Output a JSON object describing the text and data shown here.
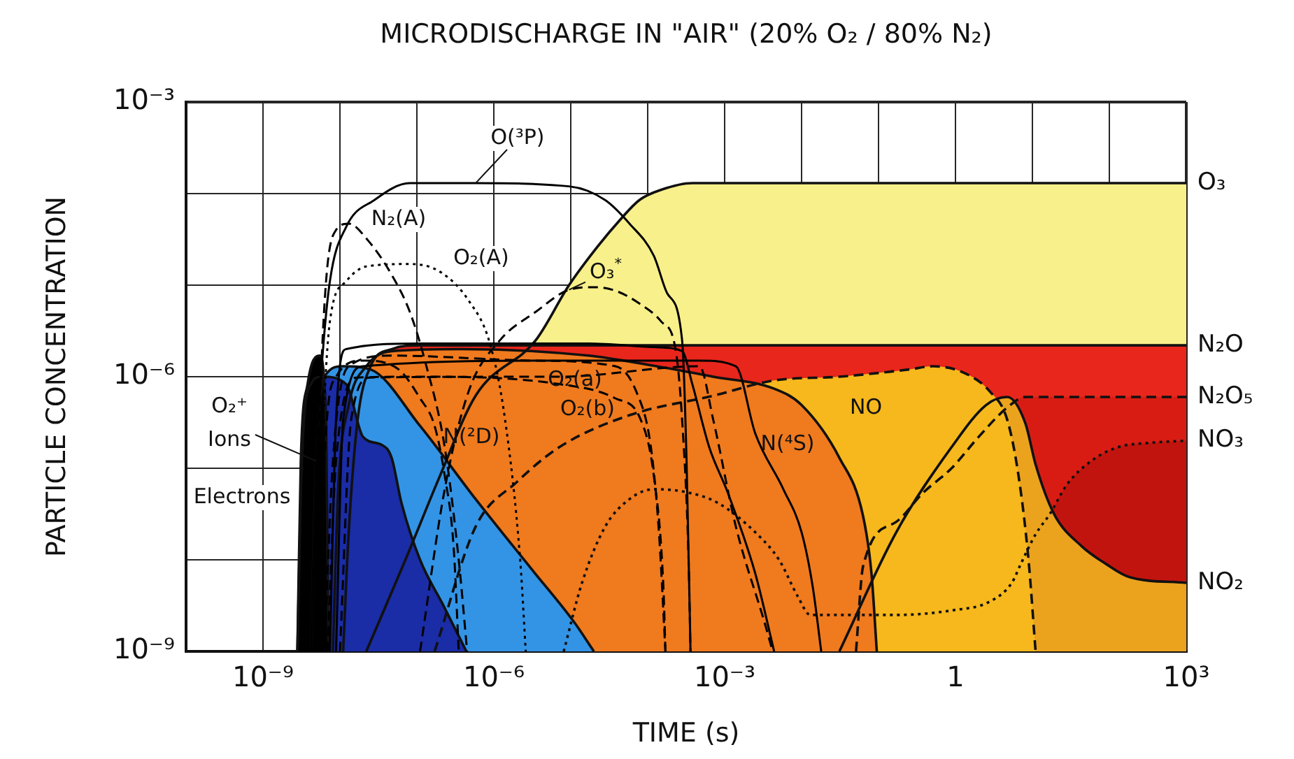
{
  "chart_data": {
    "type": "area",
    "title": "MICRODISCHARGE IN \"AIR\" (20% O₂ / 80% N₂)",
    "xlabel": "TIME (s)",
    "ylabel": "PARTICLE CONCENTRATION",
    "log": "xy",
    "xlim": [
      1e-10,
      1000
    ],
    "ylim": [
      1e-09,
      0.001
    ],
    "xticks": [
      {
        "value": 1e-10,
        "label": null
      },
      {
        "value": 1e-09,
        "label": "10⁻⁹"
      },
      {
        "value": 1e-08,
        "label": null
      },
      {
        "value": 1e-07,
        "label": null
      },
      {
        "value": 1e-06,
        "label": "10⁻⁶"
      },
      {
        "value": 1e-05,
        "label": null
      },
      {
        "value": 0.0001,
        "label": null
      },
      {
        "value": 0.001,
        "label": "10⁻³"
      },
      {
        "value": 0.01,
        "label": null
      },
      {
        "value": 0.1,
        "label": null
      },
      1,
      {
        "value": 10,
        "label": null
      },
      {
        "value": 100,
        "label": null
      },
      {
        "value": 1000,
        "label": "10³"
      }
    ],
    "yticks": [
      {
        "value": 1e-09,
        "label": "10⁻⁹"
      },
      {
        "value": 1e-08,
        "label": null
      },
      {
        "value": 1e-07,
        "label": null
      },
      {
        "value": 1e-06,
        "label": "10⁻⁶"
      },
      {
        "value": 1e-05,
        "label": null
      },
      {
        "value": 0.0001,
        "label": null
      },
      {
        "value": 0.001,
        "label": "10⁻³"
      }
    ],
    "grid": true,
    "legend": false,
    "marker": "none",
    "series": [
      {
        "name": "O₃",
        "color": "#f8f08a",
        "line_style": "solid",
        "x": [
          2.2e-08,
          7.1e-08,
          2e-07,
          5.8e-07,
          3.5e-06,
          9.5e-06,
          2.2e-05,
          4.4e-05,
          7.8e-05,
          0.00015,
          0.00038,
          1000
        ],
        "values": [
          1e-09,
          1e-08,
          8.3e-08,
          6.2e-07,
          2.5e-06,
          1e-05,
          2.6e-05,
          5.2e-05,
          8.5e-05,
          0.00011,
          0.00013,
          0.00013
        ]
      },
      {
        "name": "N₂O",
        "color": "#e8261c",
        "line_style": "solid",
        "x": [
          1.1e-08,
          1.3e-08,
          1.7e-08,
          2.5e-08,
          4.7e-08,
          1.1e-07,
          1000
        ],
        "values": [
          1e-09,
          2e-08,
          3.4e-07,
          1.3e-06,
          2e-06,
          2.2e-06,
          2.2e-06
        ]
      },
      {
        "name": "N₂O₅",
        "color": "#d81c14",
        "line_style": "dashed",
        "x": [
          0.051,
          0.063,
          0.17,
          0.38,
          0.89,
          2.0,
          4.7,
          8.1,
          25,
          1000
        ],
        "values": [
          1e-09,
          8.5e-09,
          2.6e-08,
          5.4e-08,
          1e-07,
          2.2e-07,
          4.6e-07,
          6e-07,
          6e-07,
          6e-07
        ]
      },
      {
        "name": "NO₃",
        "color": "#c2140e",
        "line_style": "dotted",
        "x": [
          8.1e-06,
          1.4e-05,
          2.8e-05,
          5.8e-05,
          0.00012,
          0.00031,
          0.00081,
          0.0025,
          0.0051,
          0.0089,
          0.013,
          0.17,
          0.89,
          2.8,
          5.4,
          7.1,
          11,
          17,
          28,
          58,
          130,
          350,
          1000
        ],
        "values": [
          1e-09,
          5.6e-09,
          2.3e-08,
          4.6e-08,
          5.9e-08,
          5.5e-08,
          4.2e-08,
          2e-08,
          1e-08,
          4e-09,
          2.5e-09,
          2.5e-09,
          2.8e-09,
          3.5e-09,
          5.6e-09,
          9.1e-09,
          1.9e-08,
          3.2e-08,
          6.6e-08,
          1.2e-07,
          1.7e-07,
          1.9e-07,
          2e-07
        ]
      },
      {
        "name": "NO₂",
        "color": "#eba31e",
        "line_style": "solid",
        "x": [
          0.031,
          0.17,
          0.89,
          2.5,
          4.7,
          8.1,
          11,
          19,
          44,
          89,
          180,
          1000
        ],
        "values": [
          1e-09,
          2e-08,
          1.7e-07,
          4.9e-07,
          6e-07,
          3.1e-07,
          1.1e-07,
          3.2e-08,
          1.4e-08,
          9.1e-09,
          6.5e-09,
          5.6e-09
        ]
      },
      {
        "name": "NO",
        "color": "#f6b81c",
        "line_style": "dashed",
        "x": [
          1.7e-07,
          5.8e-07,
          2e-06,
          7.1e-06,
          5.8e-05,
          0.00071,
          0.0044,
          0.031,
          0.25,
          0.51,
          1.3,
          2.8,
          4.7,
          6.6,
          8.9,
          11
        ],
        "values": [
          1e-09,
          2.3e-08,
          7.1e-08,
          1.7e-07,
          3.8e-07,
          6.2e-07,
          9.1e-07,
          1e-06,
          1.2e-06,
          1.3e-06,
          1.1e-06,
          6.9e-07,
          3.4e-07,
          8.3e-08,
          1e-08,
          1e-09
        ]
      },
      {
        "name": "N(⁴S)",
        "color": "#f07a1e",
        "line_style": "solid",
        "x": [
          8.1e-09,
          9.5e-09,
          1.3e-08,
          2.2e-08,
          4.7e-08,
          3.8e-07,
          1.7e-05,
          0.00013,
          0.00071,
          0.0044,
          0.01,
          0.031,
          0.063,
          0.081,
          0.095
        ],
        "values": [
          1e-09,
          5.9e-08,
          4.9e-07,
          1.3e-06,
          1.9e-06,
          2e-06,
          1.7e-06,
          1.3e-06,
          1e-06,
          7.4e-07,
          4.9e-07,
          1.3e-07,
          3e-08,
          7.1e-09,
          1e-09
        ]
      },
      {
        "name": "O₂⁺ Ions",
        "color": "#3394e6",
        "line_style": "solid",
        "x": [
          4.2e-09,
          4.9e-09,
          6.3e-09,
          1.1e-08,
          2.5e-08,
          1.1e-07,
          5.8e-07,
          3.1e-06,
          1.1e-05,
          2e-05
        ],
        "values": [
          1e-09,
          1.2e-07,
          1e-06,
          1.3e-06,
          1.2e-06,
          2.9e-07,
          4.6e-08,
          7.9e-09,
          2.1e-09,
          1e-09
        ]
      },
      {
        "name": "Electrons",
        "color": "#1a2ca6",
        "line_style": "solid",
        "x": [
          2.8e-09,
          3.2e-09,
          4.2e-09,
          5.8e-09,
          1.2e-08,
          2e-08,
          3.5e-08,
          4.7e-08,
          6.3e-08,
          1.1e-07,
          2.2e-07,
          4.4e-07
        ],
        "values": [
          1e-09,
          1.2e-07,
          8.3e-07,
          1e-06,
          8.3e-07,
          2.2e-07,
          1.8e-07,
          1.3e-07,
          4.2e-08,
          1e-08,
          3.2e-09,
          1e-09
        ]
      },
      {
        "color": "#000000",
        "line_style": "solid",
        "x": [
          2.8e-09,
          3.1e-09,
          3.8e-09,
          5.4e-09,
          6.6e-09,
          6.9e-09,
          7.1e-09
        ],
        "values": [
          1e-09,
          1.2e-07,
          8.3e-07,
          1.7e-06,
          3.4e-07,
          1e-08,
          1e-09
        ]
      },
      {
        "type": "line",
        "name": "O(³P)",
        "color": "#000000",
        "line_style": "solid",
        "x": [
          4.2e-09,
          4.9e-09,
          5.8e-09,
          7.4e-09,
          1.2e-08,
          2.8e-08,
          8.1e-08,
          5.8e-07,
          9.5e-06,
          2.8e-05,
          5.8e-05,
          0.00012,
          0.00018,
          0.00028,
          0.00032,
          0.00036
        ],
        "values": [
          1e-09,
          1.2e-07,
          1.3e-06,
          1.1e-05,
          4.3e-05,
          8.5e-05,
          0.00013,
          0.00013,
          0.00012,
          8.5e-05,
          4.7e-05,
          2.1e-05,
          8.1e-06,
          2.5e-06,
          1.2e-07,
          1e-09
        ]
      },
      {
        "type": "line",
        "name": "N₂(A)",
        "color": "#000000",
        "line_style": "dashed",
        "x": [
          4.5e-09,
          5.4e-09,
          6.6e-09,
          8.9e-09,
          1.3e-08,
          2.3e-08,
          4.7e-08,
          8.1e-08,
          1.3e-07,
          2.3e-07,
          3.5e-07,
          4.5e-07
        ],
        "values": [
          1e-09,
          3.4e-07,
          1.1e-05,
          4e-05,
          4.7e-05,
          3.1e-05,
          1.3e-05,
          5.1e-06,
          1.4e-06,
          1.7e-07,
          1e-08,
          1e-09
        ]
      },
      {
        "type": "line",
        "name": "O₂(A)",
        "color": "#000000",
        "line_style": "dotted",
        "x": [
          4.9e-09,
          5.8e-09,
          7.4e-09,
          1.2e-08,
          2.2e-08,
          8.1e-08,
          2e-07,
          4.7e-07,
          8.9e-07,
          1.4e-06,
          2.2e-06,
          2.6e-06
        ],
        "values": [
          1e-09,
          1.2e-07,
          4e-06,
          1.1e-05,
          1.6e-05,
          1.7e-05,
          1.4e-05,
          6.8e-06,
          2.3e-06,
          3.4e-07,
          1e-08,
          1e-09
        ]
      },
      {
        "type": "line",
        "name": "O₃$^{*}$",
        "color": "#000000",
        "line_style": "dashed",
        "x": [
          1.1e-07,
          2.3e-07,
          4.7e-07,
          1.2e-06,
          3.5e-06,
          9.5e-06,
          2e-05,
          3.8e-05,
          7.8e-05,
          0.00015,
          0.00023,
          0.00028,
          0.00034,
          0.00036
        ],
        "values": [
          1e-09,
          5.9e-08,
          6.9e-07,
          2.5e-06,
          5.1e-06,
          8.9e-06,
          9.5e-06,
          8.7e-06,
          6.3e-06,
          4e-06,
          2e-06,
          3.4e-07,
          1e-08,
          1e-09
        ]
      },
      {
        "type": "line",
        "name": "O₂(a)",
        "color": "#000000",
        "line_style": "dashed",
        "x": [
          6.3e-09,
          8.1e-09,
          1.3e-08,
          4.7e-08,
          3.1e-06,
          3.8e-05,
          7.1e-05,
          0.00011,
          0.00014,
          0.00017
        ],
        "values": [
          1e-09,
          1.2e-07,
          1.3e-06,
          1.7e-06,
          1.5e-06,
          1.3e-06,
          6.9e-07,
          1.7e-07,
          2e-08,
          1e-09
        ]
      },
      {
        "type": "line",
        "name": "O₂(b)",
        "color": "#000000",
        "line_style": "dashed",
        "x": [
          6.9e-09,
          8.9e-09,
          1.7e-08,
          1.1e-07,
          7.1e-06,
          3.8e-05,
          8.1e-05,
          0.00012,
          0.00016,
          0.00017
        ],
        "values": [
          1e-09,
          1.2e-07,
          9.8e-07,
          1e-06,
          8.3e-07,
          5.8e-07,
          3.4e-07,
          8.3e-08,
          5e-09,
          1e-09
        ]
      },
      {
        "type": "line",
        "name": "N(²D)",
        "color": "#000000",
        "line_style": "dashed",
        "x": [
          5.4e-09,
          6.3e-09,
          8.9e-09,
          2e-08,
          5.8e-08,
          1.1e-07,
          1.7e-07,
          2.3e-07,
          3e-07,
          3.5e-07
        ],
        "values": [
          1e-09,
          1.2e-07,
          1e-06,
          1.5e-06,
          1.2e-06,
          5.8e-07,
          2.9e-07,
          8.3e-08,
          1.4e-08,
          1e-09
        ]
      },
      {
        "type": "line",
        "color": "#000000",
        "line_style": "solid",
        "x": [
          7.4e-09,
          8.9e-09,
          1.2e-08,
          1.1e-07,
          1.7e-05,
          0.00013,
          0.00028,
          0.00038,
          0.00063,
          0.0011,
          0.0025,
          0.0044
        ],
        "values": [
          1e-09,
          3.4e-07,
          2e-06,
          2.3e-06,
          2.3e-06,
          2.1e-06,
          1.9e-06,
          8.3e-07,
          1.7e-07,
          5.4e-08,
          7.1e-09,
          1e-09
        ]
      },
      {
        "type": "line",
        "color": "#000000",
        "line_style": "solid",
        "x": [
          8.9e-09,
          1.1e-08,
          2e-08,
          7.1e-06,
          0.00047,
          0.0014,
          0.0025,
          0.0058,
          0.01,
          0.014,
          0.018
        ],
        "values": [
          1e-09,
          3.4e-07,
          1.3e-06,
          1.5e-06,
          1.5e-06,
          1.3e-06,
          2.4e-07,
          5.9e-08,
          2e-08,
          5e-09,
          1e-09
        ]
      },
      {
        "type": "line",
        "color": "#000000",
        "line_style": "dashed",
        "x": [
          1e-08,
          1.4e-08,
          2.5e-08,
          7.1e-06,
          0.00047,
          0.00071,
          0.0014,
          0.0034,
          0.0042
        ],
        "values": [
          1e-09,
          3.4e-07,
          9.8e-07,
          1e-06,
          1.3e-06,
          3.4e-07,
          2.3e-08,
          1.9e-09,
          1e-09
        ]
      }
    ]
  }
}
